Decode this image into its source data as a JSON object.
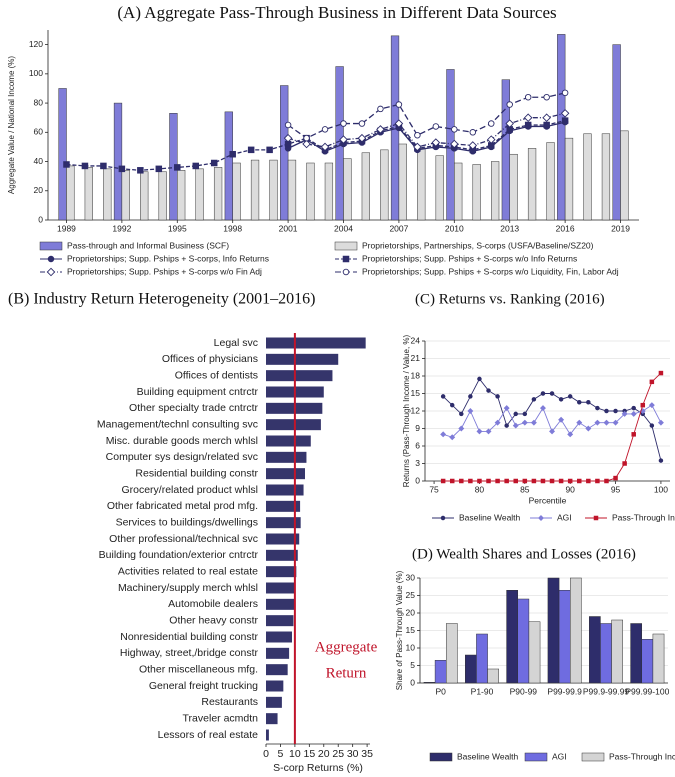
{
  "chart_data": [
    {
      "type": "bar",
      "title": "(A) Aggregate Pass-Through Business in Different Data Sources",
      "ylabel": "Aggregate Value / National Income (%)",
      "x": [
        1989,
        1990,
        1991,
        1992,
        1993,
        1994,
        1995,
        1996,
        1997,
        1998,
        1999,
        2000,
        2001,
        2002,
        2003,
        2004,
        2005,
        2006,
        2007,
        2008,
        2009,
        2010,
        2011,
        2012,
        2013,
        2014,
        2015,
        2016,
        2017,
        2018,
        2019
      ],
      "xlim": [
        1988,
        2020
      ],
      "xticks": [
        1989,
        1992,
        1995,
        1998,
        2001,
        2004,
        2007,
        2010,
        2013,
        2016,
        2019
      ],
      "ylim": [
        0,
        130
      ],
      "yticks": [
        0,
        20,
        40,
        60,
        80,
        100,
        120
      ],
      "grid": false,
      "series": [
        {
          "name": "Pass-through and Informal Business (SCF)",
          "color": "#7f7cd8",
          "values": [
            90,
            null,
            null,
            80,
            null,
            null,
            73,
            null,
            null,
            74,
            null,
            null,
            92,
            null,
            null,
            105,
            null,
            null,
            126,
            null,
            null,
            103,
            null,
            null,
            96,
            null,
            null,
            127,
            null,
            null,
            120
          ]
        },
        {
          "name": "Proprietorships, Partnerships, S-corps (USFA/Baseline/SZ20)",
          "color": "#dcdcdc",
          "values": [
            37,
            36,
            35,
            34,
            33,
            33,
            34,
            35,
            36,
            39,
            41,
            41,
            41,
            39,
            39,
            42,
            46,
            48,
            52,
            49,
            44,
            39,
            38,
            40,
            45,
            49,
            53,
            56,
            59,
            59,
            61
          ]
        },
        {
          "name": "Proprietorships; Supp. Pships + S-corps, Info Returns",
          "color": "#2e2d6b",
          "type": "line",
          "marker": "circle",
          "hollow": false,
          "dash": "solid",
          "values": [
            null,
            null,
            null,
            null,
            null,
            null,
            null,
            null,
            null,
            null,
            null,
            null,
            49,
            55,
            47,
            52,
            53,
            60,
            63,
            48,
            50,
            49,
            47,
            50,
            61,
            64,
            64,
            67,
            null,
            null,
            null
          ]
        },
        {
          "name": "Proprietorships; Supp. Pships + S-corps w/o Info Returns",
          "color": "#2e2d6b",
          "type": "line",
          "marker": "square",
          "hollow": false,
          "dash": "dash",
          "values": [
            38,
            37,
            37,
            35,
            34,
            35,
            36,
            37,
            39,
            45,
            48,
            48,
            52,
            56,
            48,
            53,
            54,
            61,
            64,
            49,
            51,
            50,
            48,
            51,
            62,
            65,
            65,
            68,
            null,
            null,
            null
          ]
        },
        {
          "name": "Proprietorships; Supp. Pships + S-corps w/o Fin Adj",
          "color": "#2e2d6b",
          "type": "line",
          "marker": "diamond",
          "hollow": true,
          "dash": "dashdot",
          "values": [
            null,
            null,
            null,
            null,
            null,
            null,
            null,
            null,
            null,
            null,
            null,
            null,
            56,
            52,
            50,
            55,
            56,
            62,
            66,
            50,
            53,
            52,
            51,
            55,
            66,
            70,
            70,
            73,
            null,
            null,
            null
          ]
        },
        {
          "name": "Proprietorships; Supp. Pships + S-corps w/o Liquidity, Fin, Labor Adj",
          "color": "#2e2d6b",
          "type": "line",
          "marker": "circle",
          "hollow": true,
          "dash": "longdash",
          "values": [
            null,
            null,
            null,
            null,
            null,
            null,
            null,
            null,
            null,
            null,
            null,
            null,
            65,
            56,
            62,
            66,
            66,
            76,
            79,
            58,
            64,
            62,
            60,
            66,
            79,
            84,
            84,
            87,
            null,
            null,
            null
          ]
        }
      ]
    },
    {
      "type": "barh",
      "title": "(B) Industry Return Heterogeneity (2001–2016)",
      "xlabel": "S-corp Returns (%)",
      "categories": [
        "Legal svc",
        "Offices of physicians",
        "Offices of dentists",
        "Building equipment cntrctr",
        "Other specialty trade cntrctr",
        "Management/technl consulting svc",
        "Misc. durable goods merch whlsl",
        "Computer sys design/related svc",
        "Residential building constr",
        "Grocery/related product whlsl",
        "Other fabricated metal prod mfg.",
        "Services to buildings/dwellings",
        "Other professional/technical svc",
        "Building foundation/exterior cntrctr",
        "Activities related to real estate",
        "Machinery/supply merch whlsl",
        "Automobile dealers",
        "Other heavy constr",
        "Nonresidential building constr",
        "Highway, street,/bridge constr",
        "Other miscellaneous mfg.",
        "General freight trucking",
        "Restaurants",
        "Traveler acmdtn",
        "Lessors of real estate"
      ],
      "values": [
        34.5,
        25,
        23,
        20,
        19.5,
        19,
        15.5,
        14,
        13.5,
        13,
        11.8,
        12,
        11.5,
        11,
        10.5,
        10,
        10,
        9.5,
        9,
        8,
        7.5,
        6,
        5.5,
        4,
        1
      ],
      "color": "#35356b",
      "xlim": [
        0,
        36
      ],
      "xticks": [
        0,
        5,
        10,
        15,
        20,
        25,
        30,
        35
      ],
      "aggregate_return": 10,
      "reference_color": "#c0142a",
      "annotation": [
        "Aggregate",
        "Return"
      ]
    },
    {
      "type": "line",
      "title": "(C) Returns vs. Ranking (2016)",
      "xlabel": "Percentile",
      "ylabel": "Returns (Pass-Through Income / Value, %)",
      "x": [
        76,
        77,
        78,
        79,
        80,
        81,
        82,
        83,
        84,
        85,
        86,
        87,
        88,
        89,
        90,
        91,
        92,
        93,
        94,
        95,
        96,
        97,
        98,
        99,
        100
      ],
      "xlim": [
        74,
        101
      ],
      "xticks": [
        75,
        80,
        85,
        90,
        95,
        100
      ],
      "ylim": [
        0,
        24
      ],
      "yticks": [
        0,
        3,
        6,
        9,
        12,
        15,
        18,
        21,
        24
      ],
      "grid": true,
      "series": [
        {
          "name": "Baseline Wealth",
          "color": "#2e2d6b",
          "marker": "circle",
          "hollow": false,
          "dash": "solid",
          "values": [
            14.5,
            13,
            11.5,
            14.5,
            17.5,
            15.5,
            14.5,
            9.5,
            11.5,
            11.5,
            14,
            15,
            15,
            14,
            14.5,
            13.5,
            13.5,
            12.5,
            12,
            12,
            12,
            12.5,
            11.5,
            9.5,
            3.5
          ]
        },
        {
          "name": "AGI",
          "color": "#7f7cd8",
          "marker": "diamond",
          "hollow": false,
          "dash": "solid",
          "values": [
            8,
            7.5,
            9,
            12,
            8.5,
            8.5,
            10,
            12.5,
            9.5,
            10,
            10,
            12.5,
            8.5,
            10.5,
            8,
            10,
            9,
            10,
            10,
            10,
            11.5,
            11.5,
            12,
            13,
            10
          ]
        },
        {
          "name": "Pass-Through Income",
          "color": "#c0142a",
          "marker": "square",
          "hollow": false,
          "dash": "solid",
          "values": [
            0,
            0,
            0,
            0,
            0,
            0,
            0,
            0,
            0,
            0,
            0,
            0,
            0,
            0,
            0,
            0,
            0,
            0,
            0,
            0.5,
            3,
            8,
            13,
            17,
            18.5
          ]
        }
      ]
    },
    {
      "type": "bar",
      "title": "(D) Wealth Shares and Losses (2016)",
      "ylabel": "Share of Pass-Through Value (%)",
      "categories": [
        "P0",
        "P1-90",
        "P90-99",
        "P99-99.9",
        "P99.9-99.99",
        "P99.99-100"
      ],
      "ylim": [
        0,
        30
      ],
      "yticks": [
        0,
        5,
        10,
        15,
        20,
        25,
        30
      ],
      "grid": true,
      "series": [
        {
          "name": "Baseline Wealth",
          "color": "#2e2d6b",
          "values": [
            0.2,
            8,
            26.5,
            30,
            19,
            17
          ]
        },
        {
          "name": "AGI",
          "color": "#6f6ce0",
          "values": [
            6.5,
            14,
            24,
            26.5,
            17,
            12.5
          ]
        },
        {
          "name": "Pass-Through Income",
          "color": "#d4d4d4",
          "values": [
            17,
            4,
            17.5,
            30,
            18,
            14
          ]
        }
      ]
    }
  ]
}
